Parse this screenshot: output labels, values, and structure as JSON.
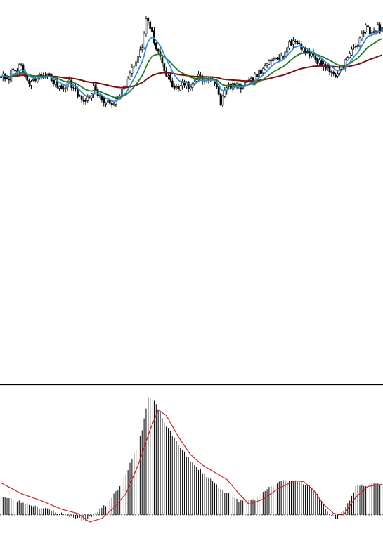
{
  "chart_data": [
    {
      "type": "candlestick",
      "title": "",
      "mark_color": "#000000",
      "bull_fill": "#ffffff",
      "bear_fill": "#000000",
      "ylim": [
        0,
        540
      ],
      "anchors": [
        [
          0,
          440
        ],
        [
          3,
          430
        ],
        [
          6,
          450
        ],
        [
          10,
          450
        ],
        [
          14,
          425
        ],
        [
          18,
          435
        ],
        [
          22,
          440
        ],
        [
          26,
          430
        ],
        [
          30,
          420
        ],
        [
          34,
          430
        ],
        [
          38,
          410
        ],
        [
          42,
          400
        ],
        [
          46,
          420
        ],
        [
          49,
          405
        ],
        [
          52,
          400
        ],
        [
          55,
          395
        ],
        [
          58,
          410
        ],
        [
          61,
          420
        ],
        [
          64,
          440
        ],
        [
          67,
          460
        ],
        [
          70,
          480
        ],
        [
          72,
          520
        ],
        [
          74,
          510
        ],
        [
          76,
          490
        ],
        [
          78,
          470
        ],
        [
          80,
          460
        ],
        [
          82,
          440
        ],
        [
          84,
          430
        ],
        [
          86,
          420
        ],
        [
          88,
          420
        ],
        [
          90,
          430
        ],
        [
          92,
          425
        ],
        [
          94,
          420
        ],
        [
          96,
          430
        ],
        [
          98,
          440
        ],
        [
          100,
          435
        ],
        [
          103,
          430
        ],
        [
          106,
          430
        ],
        [
          109,
          400
        ],
        [
          112,
          420
        ],
        [
          115,
          425
        ],
        [
          118,
          420
        ],
        [
          121,
          425
        ],
        [
          124,
          430
        ],
        [
          127,
          440
        ],
        [
          130,
          445
        ],
        [
          133,
          460
        ],
        [
          136,
          470
        ],
        [
          139,
          465
        ],
        [
          142,
          480
        ],
        [
          145,
          490
        ],
        [
          148,
          485
        ],
        [
          151,
          475
        ],
        [
          154,
          470
        ],
        [
          157,
          460
        ],
        [
          160,
          455
        ],
        [
          163,
          445
        ],
        [
          166,
          440
        ],
        [
          169,
          450
        ],
        [
          172,
          465
        ],
        [
          175,
          480
        ],
        [
          178,
          490
        ],
        [
          181,
          515
        ],
        [
          183,
          505
        ],
        [
          185,
          500
        ],
        [
          187,
          510
        ],
        [
          189,
          505
        ]
      ],
      "ma_fast": {
        "color": "#2b8fe0"
      },
      "ma_mid": {
        "color": "#1f7a1f"
      },
      "ma_slow": {
        "color": "#7a0e0e"
      }
    },
    {
      "type": "bar",
      "title": "",
      "bar_color": "#000000",
      "signal_color": "#cc2222",
      "zero_line_color": "#000000",
      "ylim": [
        -15,
        175
      ],
      "anchors": [
        [
          0,
          26
        ],
        [
          20,
          10
        ],
        [
          32,
          0
        ],
        [
          42,
          -8
        ],
        [
          52,
          14
        ],
        [
          60,
          45
        ],
        [
          66,
          85
        ],
        [
          70,
          120
        ],
        [
          73,
          165
        ],
        [
          76,
          160
        ],
        [
          82,
          125
        ],
        [
          88,
          100
        ],
        [
          94,
          75
        ],
        [
          102,
          55
        ],
        [
          110,
          35
        ],
        [
          118,
          20
        ],
        [
          126,
          22
        ],
        [
          134,
          40
        ],
        [
          140,
          48
        ],
        [
          148,
          48
        ],
        [
          153,
          40
        ],
        [
          158,
          25
        ],
        [
          163,
          0
        ],
        [
          167,
          -5
        ],
        [
          172,
          15
        ],
        [
          176,
          40
        ],
        [
          180,
          42
        ],
        [
          189,
          43
        ]
      ],
      "signal_anchors": [
        [
          0,
          45
        ],
        [
          10,
          30
        ],
        [
          20,
          20
        ],
        [
          30,
          8
        ],
        [
          38,
          2
        ],
        [
          44,
          -10
        ],
        [
          50,
          -5
        ],
        [
          56,
          10
        ],
        [
          62,
          30
        ],
        [
          68,
          70
        ],
        [
          74,
          120
        ],
        [
          78,
          148
        ],
        [
          82,
          140
        ],
        [
          88,
          110
        ],
        [
          94,
          85
        ],
        [
          100,
          70
        ],
        [
          106,
          60
        ],
        [
          112,
          50
        ],
        [
          118,
          30
        ],
        [
          123,
          15
        ],
        [
          130,
          22
        ],
        [
          138,
          38
        ],
        [
          146,
          48
        ],
        [
          150,
          47
        ],
        [
          155,
          35
        ],
        [
          160,
          15
        ],
        [
          165,
          2
        ],
        [
          170,
          0
        ],
        [
          176,
          25
        ],
        [
          182,
          40
        ],
        [
          189,
          43
        ]
      ]
    }
  ]
}
